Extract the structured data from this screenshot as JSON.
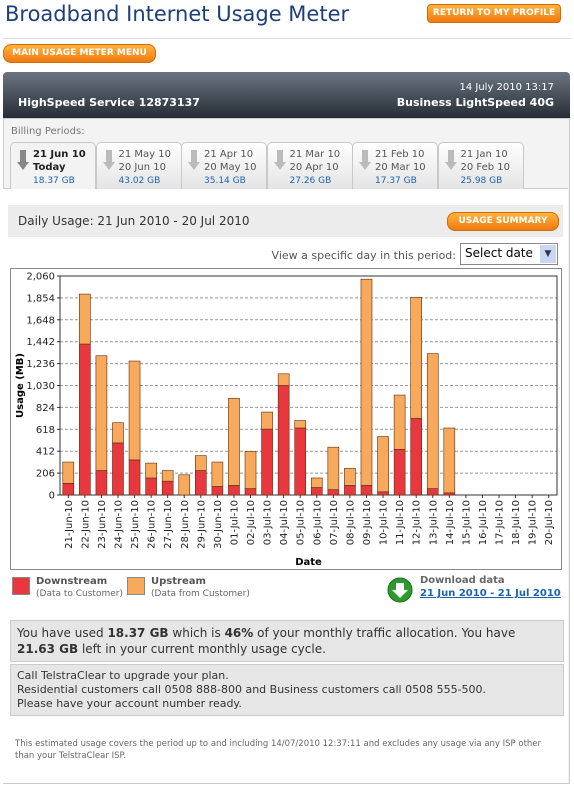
{
  "header": {
    "title": "Broadband Internet Usage Meter",
    "return_button": "RETURN TO MY PROFILE"
  },
  "menu_button": "MAIN USAGE METER MENU",
  "service": {
    "date": "14 July 2010 13:17",
    "name": "HighSpeed Service 12873137",
    "plan": "Business LightSpeed 40G"
  },
  "billing": {
    "label": "Billing Periods:",
    "tabs": [
      {
        "line1": "21 Jun 10",
        "line2": "Today",
        "usage": "18.37 GB"
      },
      {
        "line1": "21 May 10",
        "line2": "20 Jun 10",
        "usage": "43.02 GB"
      },
      {
        "line1": "21 Apr 10",
        "line2": "20 May 10",
        "usage": "35.14 GB"
      },
      {
        "line1": "21 Mar 10",
        "line2": "20 Apr 10",
        "usage": "27.26 GB"
      },
      {
        "line1": "21 Feb 10",
        "line2": "20 Mar 10",
        "usage": "17.37 GB"
      },
      {
        "line1": "21 Jan 10",
        "line2": "20 Feb 10",
        "usage": "25.98 GB"
      }
    ]
  },
  "daily": {
    "title": "Daily Usage: 21 Jun 2010 - 20 Jul 2010",
    "summary_button": "USAGE SUMMARY",
    "day_prompt": "View a specific day in this period:",
    "select": "Select date"
  },
  "chart_data": {
    "type": "stacked-bar",
    "x_label": "Date",
    "y_label": "Usage (MB)",
    "categories": [
      "21-Jun-10",
      "22-Jun-10",
      "23-Jun-10",
      "24-Jun-10",
      "25-Jun-10",
      "26-Jun-10",
      "27-Jun-10",
      "28-Jun-10",
      "29-Jun-10",
      "30-Jun-10",
      "01-Jul-10",
      "02-Jul-10",
      "03-Jul-10",
      "04-Jul-10",
      "05-Jul-10",
      "06-Jul-10",
      "07-Jul-10",
      "08-Jul-10",
      "09-Jul-10",
      "10-Jul-10",
      "11-Jul-10",
      "12-Jul-10",
      "13-Jul-10",
      "14-Jul-10",
      "15-Jul-10",
      "16-Jul-10",
      "17-Jul-10",
      "18-Jul-10",
      "19-Jul-10",
      "20-Jul-10"
    ],
    "series": [
      {
        "name": "Downstream",
        "note": "(Data to Customer)",
        "color": "#e8383d",
        "values": [
          110,
          1420,
          230,
          490,
          330,
          160,
          130,
          0,
          230,
          80,
          90,
          60,
          620,
          1030,
          630,
          70,
          50,
          90,
          90,
          30,
          430,
          720,
          60,
          20,
          0,
          0,
          0,
          0,
          0,
          0
        ]
      },
      {
        "name": "Upstream",
        "note": "(Data from Customer)",
        "color": "#f9a95c",
        "values": [
          200,
          470,
          1080,
          190,
          930,
          140,
          100,
          190,
          140,
          230,
          820,
          350,
          160,
          110,
          70,
          90,
          400,
          160,
          1940,
          520,
          510,
          1140,
          1270,
          610,
          0,
          0,
          0,
          0,
          0,
          0
        ]
      }
    ],
    "ylim": [
      0,
      2060
    ],
    "yticks": [
      0,
      206,
      412,
      618,
      824,
      {
        "value": 1030,
        "label": "1,030"
      },
      {
        "value": 1236,
        "label": "1,236"
      },
      {
        "value": 1442,
        "label": "1,442"
      },
      {
        "value": 1648,
        "label": "1,648"
      },
      {
        "value": 1854,
        "label": "1,854"
      },
      {
        "value": 2060,
        "label": "2,060"
      }
    ],
    "grid": true
  },
  "download": {
    "label": "Download data",
    "link": "21 Jun 2010 - 21 Jul 2010"
  },
  "summary": {
    "parts": [
      "You have used ",
      "18.37 GB",
      " which is ",
      "46%",
      " of your monthly traffic allocation. You have ",
      "21.63 GB",
      " left in your current monthly usage cycle."
    ]
  },
  "contact": {
    "lines": [
      "Call TelstraClear to upgrade your plan.",
      "Residential customers call 0508 888-800 and Business customers call 0508 555-500.",
      "Please have your account number ready."
    ]
  },
  "footnote": "This estimated usage covers the period up to and including 14/07/2010 12:37:11 and excludes any usage via any ISP other than your TelstraClear ISP."
}
